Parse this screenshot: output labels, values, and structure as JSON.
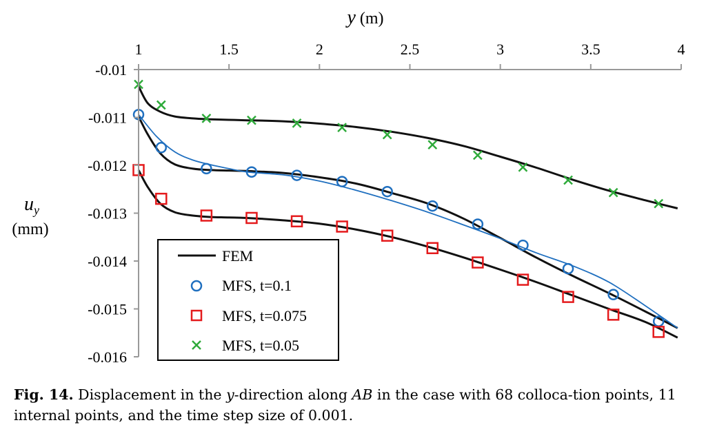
{
  "chart_data": {
    "type": "line",
    "xlabel": "y (m)",
    "xlabel_var": "y",
    "xlabel_unit": "(m)",
    "ylabel_var": "u",
    "ylabel_sub": "y",
    "ylabel_unit": "(mm)",
    "xlim": [
      1,
      4
    ],
    "ylim": [
      -0.016,
      -0.01
    ],
    "x_ticks": [
      "1",
      "1.5",
      "2",
      "2.5",
      "3",
      "3.5",
      "4"
    ],
    "y_ticks": [
      "-0.01",
      "-0.011",
      "-0.012",
      "-0.013",
      "-0.014",
      "-0.015",
      "-0.016"
    ],
    "x_axis_position": "top",
    "legend_position": "bottom-left",
    "grid": false,
    "series": [
      {
        "name": "FEM",
        "kind": "line",
        "color": "#111111",
        "curves": [
          {
            "x": [
              1.0,
              1.05,
              1.12,
              1.2,
              1.3,
              1.4,
              1.5,
              1.6,
              1.8,
              2.0,
              2.2,
              2.4,
              2.6,
              2.8,
              3.0,
              3.2,
              3.4,
              3.6,
              3.8,
              3.98
            ],
            "y": [
              -0.01035,
              -0.0107,
              -0.01088,
              -0.01098,
              -0.01102,
              -0.01104,
              -0.01105,
              -0.01106,
              -0.01108,
              -0.01113,
              -0.0112,
              -0.0113,
              -0.01143,
              -0.0116,
              -0.01182,
              -0.01205,
              -0.0123,
              -0.01253,
              -0.01273,
              -0.0129
            ]
          },
          {
            "x": [
              1.0,
              1.05,
              1.12,
              1.2,
              1.3,
              1.4,
              1.5,
              1.6,
              1.8,
              2.0,
              2.2,
              2.4,
              2.6,
              2.8,
              3.0,
              3.2,
              3.4,
              3.6,
              3.8,
              3.98
            ],
            "y": [
              -0.01098,
              -0.01135,
              -0.01175,
              -0.01198,
              -0.01207,
              -0.0121,
              -0.01211,
              -0.01212,
              -0.01216,
              -0.01225,
              -0.01238,
              -0.01258,
              -0.0128,
              -0.01312,
              -0.01352,
              -0.01393,
              -0.01431,
              -0.01467,
              -0.01505,
              -0.0154
            ]
          },
          {
            "x": [
              1.0,
              1.05,
              1.12,
              1.2,
              1.3,
              1.4,
              1.5,
              1.6,
              1.8,
              2.0,
              2.2,
              2.4,
              2.6,
              2.8,
              3.0,
              3.2,
              3.4,
              3.6,
              3.8,
              3.98
            ],
            "y": [
              -0.0121,
              -0.01245,
              -0.0128,
              -0.01298,
              -0.01305,
              -0.01308,
              -0.01309,
              -0.0131,
              -0.01315,
              -0.01322,
              -0.01334,
              -0.0135,
              -0.0137,
              -0.01393,
              -0.01418,
              -0.01444,
              -0.01472,
              -0.015,
              -0.01527,
              -0.0156
            ]
          }
        ]
      },
      {
        "name": "MFS, t=0.1",
        "kind": "marker",
        "marker": "circle",
        "color": "#1f6fbf",
        "x": [
          1.0,
          1.125,
          1.375,
          1.625,
          1.875,
          2.125,
          2.375,
          2.625,
          2.875,
          3.125,
          3.375,
          3.625,
          3.875
        ],
        "y": [
          -0.01094,
          -0.01163,
          -0.01207,
          -0.01214,
          -0.01221,
          -0.01234,
          -0.01255,
          -0.01285,
          -0.01323,
          -0.01367,
          -0.01416,
          -0.0147,
          -0.01526
        ]
      },
      {
        "name": "MFS, t=0.075",
        "kind": "marker",
        "marker": "square",
        "color": "#e41a1c",
        "x": [
          1.0,
          1.125,
          1.375,
          1.625,
          1.875,
          2.125,
          2.375,
          2.625,
          2.875,
          3.125,
          3.375,
          3.625,
          3.875
        ],
        "y": [
          -0.0121,
          -0.0127,
          -0.01305,
          -0.0131,
          -0.01317,
          -0.01328,
          -0.01347,
          -0.01373,
          -0.01403,
          -0.01439,
          -0.01475,
          -0.01512,
          -0.01548
        ]
      },
      {
        "name": "MFS, t=0.05",
        "kind": "marker",
        "marker": "cross",
        "color": "#2eaa3a",
        "x": [
          1.0,
          1.125,
          1.375,
          1.625,
          1.875,
          2.125,
          2.375,
          2.625,
          2.875,
          3.125,
          3.375,
          3.625,
          3.875
        ],
        "y": [
          -0.01031,
          -0.01074,
          -0.01102,
          -0.01106,
          -0.01112,
          -0.01121,
          -0.01136,
          -0.01157,
          -0.01179,
          -0.01204,
          -0.01231,
          -0.01257,
          -0.0128
        ]
      },
      {
        "name": "",
        "kind": "fit-line",
        "color": "#1f6fbf",
        "x": [
          1.0,
          1.1,
          1.2,
          1.3,
          1.4,
          1.5,
          1.6,
          1.8,
          2.0,
          2.2,
          2.4,
          2.6,
          2.8,
          3.0,
          3.2,
          3.4,
          3.6,
          3.8,
          3.98
        ],
        "y": [
          -0.01094,
          -0.0114,
          -0.01172,
          -0.01189,
          -0.01199,
          -0.01207,
          -0.01214,
          -0.0122,
          -0.01233,
          -0.01252,
          -0.01274,
          -0.01298,
          -0.01325,
          -0.01353,
          -0.01383,
          -0.0141,
          -0.01444,
          -0.01493,
          -0.0154
        ]
      }
    ]
  },
  "caption": {
    "label": "Fig. 14.",
    "text_1": "Displacement in the ",
    "italic_1": "y",
    "text_2": "-direction along ",
    "italic_2": "AB",
    "text_3": " in the case with 68 colloca-tion points, 11 internal points, and the time step size of 0.001."
  }
}
